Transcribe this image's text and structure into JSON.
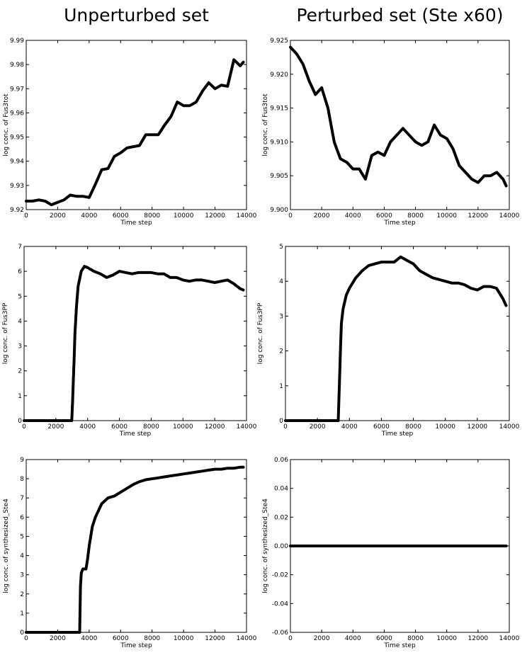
{
  "chart_data": [
    {
      "type": "scatter",
      "title": "Unperturbed set",
      "xlabel": "Time step",
      "ylabel": "log conc. of Fus3tot",
      "color": "#000000",
      "marker": "*",
      "grid": false,
      "xlim": [
        0,
        14000
      ],
      "xticks": [
        0,
        2000,
        4000,
        6000,
        8000,
        10000,
        12000,
        14000
      ],
      "ylim": [
        9.92,
        9.99
      ],
      "yticks": [
        9.92,
        9.93,
        9.94,
        9.95,
        9.96,
        9.97,
        9.98,
        9.99
      ],
      "x": [
        0,
        400,
        800,
        1200,
        1600,
        2000,
        2400,
        2800,
        3200,
        3600,
        4000,
        4400,
        4800,
        5200,
        5600,
        6000,
        6400,
        6800,
        7200,
        7600,
        8000,
        8400,
        8800,
        9200,
        9600,
        10000,
        10400,
        10800,
        11200,
        11600,
        12000,
        12400,
        12800,
        13200,
        13600,
        13800
      ],
      "values": [
        9.9235,
        9.9235,
        9.924,
        9.9235,
        9.922,
        9.923,
        9.924,
        9.926,
        9.9255,
        9.9255,
        9.925,
        9.9305,
        9.9365,
        9.937,
        9.942,
        9.9435,
        9.9455,
        9.946,
        9.9465,
        9.951,
        9.951,
        9.951,
        9.955,
        9.9585,
        9.9645,
        9.963,
        9.963,
        9.9645,
        9.969,
        9.9725,
        9.97,
        9.9715,
        9.971,
        9.982,
        9.9795,
        9.981
      ]
    },
    {
      "type": "scatter",
      "title": "Perturbed set (Ste x60)",
      "xlabel": "Time step",
      "ylabel": "log conc. of Fus3tot",
      "color": "#000000",
      "marker": "*",
      "grid": false,
      "xlim": [
        0,
        14000
      ],
      "xticks": [
        0,
        2000,
        4000,
        6000,
        8000,
        10000,
        12000,
        14000
      ],
      "ylim": [
        9.9,
        9.925
      ],
      "yticks": [
        {
          "value": 9.9,
          "label": "9.900"
        },
        9.905,
        {
          "value": 9.91,
          "label": "9.910"
        },
        9.915,
        {
          "value": 9.92,
          "label": "9.920"
        },
        9.925
      ],
      "x": [
        0,
        400,
        800,
        1200,
        1600,
        2000,
        2400,
        2800,
        3200,
        3600,
        4000,
        4400,
        4800,
        5200,
        5600,
        6000,
        6400,
        6800,
        7200,
        7600,
        8000,
        8400,
        8800,
        9200,
        9600,
        10000,
        10400,
        10800,
        11200,
        11600,
        12000,
        12400,
        12800,
        13200,
        13600,
        13800
      ],
      "values": [
        9.924,
        9.923,
        9.9215,
        9.919,
        9.917,
        9.918,
        9.915,
        9.91,
        9.9075,
        9.907,
        9.906,
        9.906,
        9.9045,
        9.908,
        9.9085,
        9.908,
        9.91,
        9.911,
        9.912,
        9.911,
        9.91,
        9.9095,
        9.91,
        9.9125,
        9.911,
        9.9105,
        9.909,
        9.9065,
        9.9055,
        9.9045,
        9.904,
        9.905,
        9.905,
        9.9055,
        9.9045,
        9.9035
      ]
    },
    {
      "type": "scatter",
      "xlabel": "Time step",
      "ylabel": "log conc. of Fus3PP",
      "color": "#000000",
      "marker": "*",
      "grid": false,
      "xlim": [
        0,
        14000
      ],
      "xticks": [
        0,
        2000,
        4000,
        6000,
        8000,
        10000,
        12000,
        14000
      ],
      "ylim": [
        0,
        7
      ],
      "yticks": [
        0,
        1,
        2,
        3,
        4,
        5,
        6,
        7
      ],
      "x": [
        0,
        400,
        800,
        1200,
        1600,
        2000,
        2400,
        2800,
        3000,
        3050,
        3100,
        3150,
        3200,
        3300,
        3400,
        3600,
        3800,
        4000,
        4400,
        4800,
        5200,
        5600,
        6000,
        6400,
        6800,
        7200,
        7600,
        8000,
        8400,
        8800,
        9200,
        9600,
        10000,
        10400,
        10800,
        11200,
        11600,
        12000,
        12400,
        12800,
        13200,
        13600,
        13800
      ],
      "values": [
        0,
        0,
        0,
        0,
        0,
        0,
        0,
        0,
        0,
        0.7,
        1.6,
        2.5,
        3.5,
        4.6,
        5.4,
        6.0,
        6.2,
        6.15,
        6.0,
        5.9,
        5.75,
        5.85,
        6.0,
        5.95,
        5.9,
        5.95,
        5.95,
        5.95,
        5.9,
        5.9,
        5.75,
        5.75,
        5.65,
        5.6,
        5.65,
        5.65,
        5.6,
        5.55,
        5.6,
        5.65,
        5.5,
        5.3,
        5.25
      ]
    },
    {
      "type": "scatter",
      "xlabel": "Time step",
      "ylabel": "log conc. of Fus3PP",
      "color": "#000000",
      "marker": "*",
      "grid": false,
      "xlim": [
        0,
        14000
      ],
      "xticks": [
        0,
        2000,
        4000,
        6000,
        8000,
        10000,
        12000,
        14000
      ],
      "ylim": [
        0,
        5
      ],
      "yticks": [
        0,
        1,
        2,
        3,
        4,
        5
      ],
      "x": [
        0,
        400,
        800,
        1200,
        1600,
        2000,
        2400,
        2800,
        3200,
        3300,
        3350,
        3400,
        3450,
        3500,
        3600,
        3800,
        4000,
        4400,
        4800,
        5200,
        5600,
        6000,
        6400,
        6800,
        7200,
        7600,
        8000,
        8400,
        8800,
        9200,
        9600,
        10000,
        10400,
        10800,
        11200,
        11600,
        12000,
        12400,
        12800,
        13200,
        13600,
        13800
      ],
      "values": [
        0,
        0,
        0,
        0,
        0,
        0,
        0,
        0,
        0,
        0,
        0.7,
        1.4,
        2.2,
        2.8,
        3.2,
        3.6,
        3.8,
        4.1,
        4.3,
        4.45,
        4.5,
        4.55,
        4.55,
        4.55,
        4.7,
        4.6,
        4.5,
        4.3,
        4.2,
        4.1,
        4.05,
        4.0,
        3.95,
        3.95,
        3.9,
        3.8,
        3.75,
        3.85,
        3.85,
        3.8,
        3.5,
        3.3
      ]
    },
    {
      "type": "scatter",
      "xlabel": "Time step",
      "ylabel": "log conc. of synthesized_Ste4",
      "color": "#000000",
      "marker": "*",
      "grid": false,
      "xlim": [
        0,
        14000
      ],
      "xticks": [
        0,
        2000,
        4000,
        6000,
        8000,
        10000,
        12000,
        14000
      ],
      "ylim": [
        0,
        9
      ],
      "yticks": [
        0,
        1,
        2,
        3,
        4,
        5,
        6,
        7,
        8,
        9
      ],
      "x": [
        0,
        400,
        800,
        1200,
        1600,
        2000,
        2400,
        2800,
        3200,
        3400,
        3450,
        3500,
        3600,
        3800,
        3900,
        4000,
        4200,
        4400,
        4800,
        5200,
        5600,
        6000,
        6400,
        6800,
        7200,
        7600,
        8000,
        8400,
        8800,
        9200,
        9600,
        10000,
        10400,
        10800,
        11200,
        11600,
        12000,
        12400,
        12800,
        13200,
        13600,
        13800
      ],
      "values": [
        0,
        0,
        0,
        0,
        0,
        0,
        0,
        0,
        0,
        0,
        2.4,
        3.1,
        3.3,
        3.3,
        3.8,
        4.5,
        5.5,
        6.0,
        6.7,
        7.0,
        7.1,
        7.3,
        7.5,
        7.7,
        7.85,
        7.95,
        8.0,
        8.05,
        8.1,
        8.15,
        8.2,
        8.25,
        8.3,
        8.35,
        8.4,
        8.45,
        8.5,
        8.5,
        8.55,
        8.55,
        8.6,
        8.6
      ]
    },
    {
      "type": "scatter",
      "xlabel": "Time step",
      "ylabel": "log conc. of synthesized_Ste4",
      "color": "#000000",
      "marker": "*",
      "grid": false,
      "xlim": [
        0,
        14000
      ],
      "xticks": [
        0,
        2000,
        4000,
        6000,
        8000,
        10000,
        12000,
        14000
      ],
      "ylim": [
        -0.06,
        0.06
      ],
      "yticks": [
        -0.06,
        -0.04,
        -0.02,
        {
          "value": 0,
          "label": "0.00"
        },
        0.02,
        0.04,
        0.06
      ],
      "x": [
        0,
        400,
        800,
        1200,
        1600,
        2000,
        2400,
        2800,
        3200,
        3600,
        4000,
        4400,
        4800,
        5200,
        5600,
        6000,
        6400,
        6800,
        7200,
        7600,
        8000,
        8400,
        8800,
        9200,
        9600,
        10000,
        10400,
        10800,
        11200,
        11600,
        12000,
        12400,
        12800,
        13200,
        13600,
        13800
      ],
      "values": [
        0,
        0,
        0,
        0,
        0,
        0,
        0,
        0,
        0,
        0,
        0,
        0,
        0,
        0,
        0,
        0,
        0,
        0,
        0,
        0,
        0,
        0,
        0,
        0,
        0,
        0,
        0,
        0,
        0,
        0,
        0,
        0,
        0,
        0,
        0,
        0
      ]
    }
  ]
}
